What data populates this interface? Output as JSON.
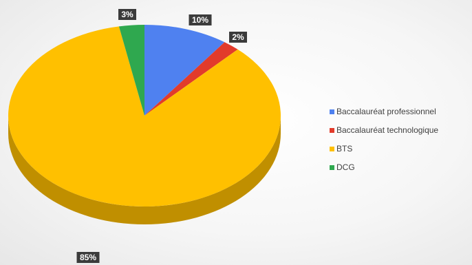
{
  "chart_data": {
    "type": "pie",
    "categories": [
      "Baccalauréat professionnel",
      "Baccalauréat technologique",
      "BTS",
      "DCG"
    ],
    "values": [
      10,
      2,
      85,
      3
    ],
    "data_labels": [
      "10%",
      "2%",
      "85%",
      "3%"
    ],
    "colors": [
      "#4f81f0",
      "#e23b2b",
      "#ffc000",
      "#2fa84f"
    ],
    "side_colors": [
      "#2f5fbe",
      "#a82a1f",
      "#c08f00",
      "#1f7a37"
    ],
    "legend_position": "right",
    "three_d": true
  }
}
